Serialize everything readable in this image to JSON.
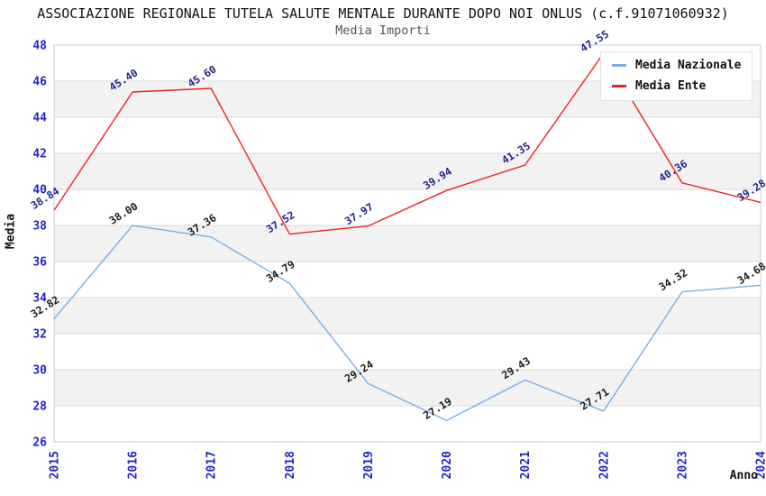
{
  "header": {
    "title": "ASSOCIAZIONE REGIONALE TUTELA SALUTE MENTALE DURANTE DOPO NOI ONLUS (c.f.91071060932)",
    "subtitle": "Media Importi"
  },
  "chart_data": {
    "type": "line",
    "x": [
      2015,
      2016,
      2017,
      2018,
      2019,
      2020,
      2021,
      2022,
      2023,
      2024
    ],
    "series": [
      {
        "name": "Media Nazionale",
        "color": "#7aafe4",
        "label_color": "#1a1a1a",
        "values": [
          32.82,
          38.0,
          37.36,
          34.79,
          29.24,
          27.19,
          29.43,
          27.71,
          34.32,
          34.68
        ]
      },
      {
        "name": "Media Ente",
        "color": "#ee2222",
        "label_color": "#23238e",
        "values": [
          38.84,
          45.4,
          45.6,
          37.52,
          37.97,
          39.94,
          41.35,
          47.55,
          40.36,
          39.28
        ]
      }
    ],
    "xlabel": "Anno",
    "ylabel": "Media",
    "ylim": [
      26,
      48
    ],
    "ytick_step": 2,
    "grid": true,
    "legend_position": "top-right",
    "band_color": "#f2f2f2",
    "grid_color": "#d9d9d9",
    "border_color": "#cccccc",
    "tick_color": "#2323cc"
  }
}
